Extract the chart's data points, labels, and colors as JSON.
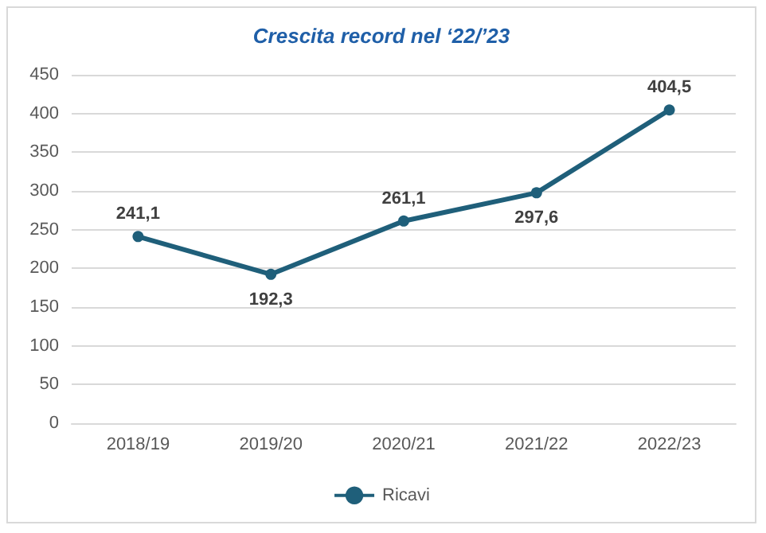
{
  "chart_data": {
    "type": "line",
    "title": "Crescita record nel ‘22/’23",
    "categories": [
      "2018/19",
      "2019/20",
      "2020/21",
      "2021/22",
      "2022/23"
    ],
    "series": [
      {
        "name": "Ricavi",
        "color": "#1f5f7a",
        "values": [
          241.1,
          192.3,
          261.1,
          297.6,
          404.5
        ],
        "value_labels": [
          "241,1",
          "192,3",
          "261,1",
          "297,6",
          "404,5"
        ]
      }
    ],
    "ylim": [
      0,
      450
    ],
    "yticks": [
      0,
      50,
      100,
      150,
      200,
      250,
      300,
      350,
      400,
      450
    ],
    "grid": "y",
    "legend": "bottom",
    "marker": "circle",
    "line_style": "solid"
  }
}
